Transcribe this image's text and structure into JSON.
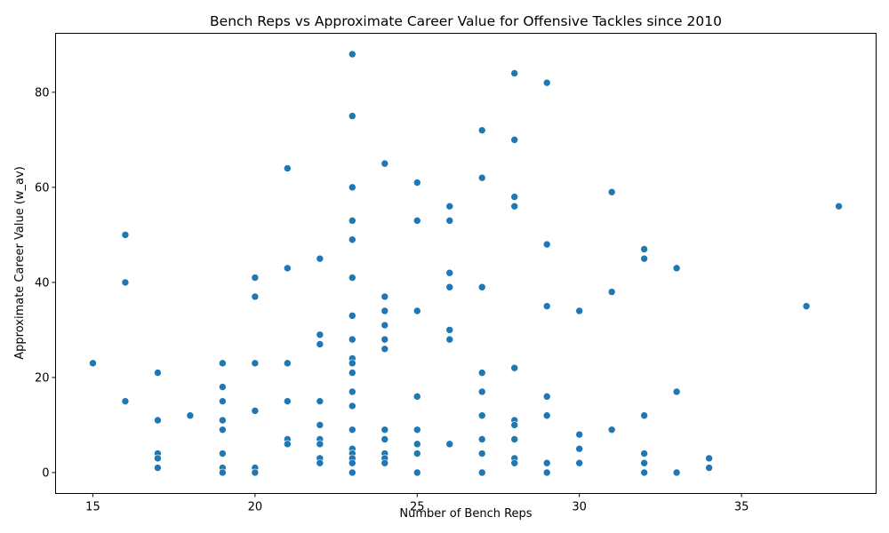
{
  "chart_data": {
    "type": "scatter",
    "title": "Bench Reps vs Approximate Career Value for Offensive Tackles since 2010",
    "xlabel": "Number of Bench Reps",
    "ylabel": "Approximate Career Value (w_av)",
    "xlim": [
      13.85,
      39.15
    ],
    "ylim": [
      -4.4,
      92.4
    ],
    "xticks": [
      15,
      20,
      25,
      30,
      35
    ],
    "yticks": [
      0,
      20,
      40,
      60,
      80
    ],
    "grid": false,
    "color": "#1f77b4",
    "points": [
      [
        23,
        88
      ],
      [
        28,
        84
      ],
      [
        29,
        82
      ],
      [
        23,
        75
      ],
      [
        27,
        72
      ],
      [
        28,
        70
      ],
      [
        24,
        65
      ],
      [
        21,
        64
      ],
      [
        27,
        62
      ],
      [
        25,
        61
      ],
      [
        23,
        60
      ],
      [
        31,
        59
      ],
      [
        28,
        58
      ],
      [
        26,
        56
      ],
      [
        28,
        56
      ],
      [
        38,
        56
      ],
      [
        23,
        53
      ],
      [
        25,
        53
      ],
      [
        26,
        53
      ],
      [
        16,
        50
      ],
      [
        23,
        49
      ],
      [
        29,
        48
      ],
      [
        32,
        47
      ],
      [
        22,
        45
      ],
      [
        32,
        45
      ],
      [
        21,
        43
      ],
      [
        33,
        43
      ],
      [
        26,
        42
      ],
      [
        20,
        41
      ],
      [
        23,
        41
      ],
      [
        16,
        40
      ],
      [
        26,
        39
      ],
      [
        27,
        39
      ],
      [
        31,
        38
      ],
      [
        20,
        37
      ],
      [
        24,
        37
      ],
      [
        29,
        35
      ],
      [
        37,
        35
      ],
      [
        24,
        34
      ],
      [
        25,
        34
      ],
      [
        30,
        34
      ],
      [
        23,
        33
      ],
      [
        24,
        31
      ],
      [
        26,
        30
      ],
      [
        22,
        29
      ],
      [
        23,
        28
      ],
      [
        24,
        28
      ],
      [
        26,
        28
      ],
      [
        22,
        27
      ],
      [
        24,
        26
      ],
      [
        23,
        24
      ],
      [
        15,
        23
      ],
      [
        19,
        23
      ],
      [
        20,
        23
      ],
      [
        21,
        23
      ],
      [
        23,
        23
      ],
      [
        28,
        22
      ],
      [
        17,
        21
      ],
      [
        23,
        21
      ],
      [
        27,
        21
      ],
      [
        19,
        18
      ],
      [
        23,
        17
      ],
      [
        27,
        17
      ],
      [
        33,
        17
      ],
      [
        25,
        16
      ],
      [
        29,
        16
      ],
      [
        16,
        15
      ],
      [
        19,
        15
      ],
      [
        21,
        15
      ],
      [
        22,
        15
      ],
      [
        23,
        14
      ],
      [
        20,
        13
      ],
      [
        18,
        12
      ],
      [
        27,
        12
      ],
      [
        29,
        12
      ],
      [
        32,
        12
      ],
      [
        17,
        11
      ],
      [
        19,
        11
      ],
      [
        28,
        11
      ],
      [
        22,
        10
      ],
      [
        28,
        10
      ],
      [
        19,
        9
      ],
      [
        23,
        9
      ],
      [
        24,
        9
      ],
      [
        25,
        9
      ],
      [
        31,
        9
      ],
      [
        30,
        8
      ],
      [
        21,
        7
      ],
      [
        22,
        7
      ],
      [
        24,
        7
      ],
      [
        27,
        7
      ],
      [
        28,
        7
      ],
      [
        21,
        6
      ],
      [
        22,
        6
      ],
      [
        25,
        6
      ],
      [
        26,
        6
      ],
      [
        30,
        5
      ],
      [
        23,
        5
      ],
      [
        17,
        4
      ],
      [
        19,
        4
      ],
      [
        23,
        4
      ],
      [
        24,
        4
      ],
      [
        25,
        4
      ],
      [
        27,
        4
      ],
      [
        32,
        4
      ],
      [
        17,
        3
      ],
      [
        22,
        3
      ],
      [
        23,
        3
      ],
      [
        24,
        3
      ],
      [
        28,
        3
      ],
      [
        34,
        3
      ],
      [
        22,
        2
      ],
      [
        23,
        2
      ],
      [
        24,
        2
      ],
      [
        28,
        2
      ],
      [
        29,
        2
      ],
      [
        30,
        2
      ],
      [
        32,
        2
      ],
      [
        17,
        1
      ],
      [
        19,
        1
      ],
      [
        20,
        1
      ],
      [
        34,
        1
      ],
      [
        19,
        0
      ],
      [
        20,
        0
      ],
      [
        23,
        0
      ],
      [
        25,
        0
      ],
      [
        27,
        0
      ],
      [
        29,
        0
      ],
      [
        32,
        0
      ],
      [
        33,
        0
      ]
    ]
  }
}
